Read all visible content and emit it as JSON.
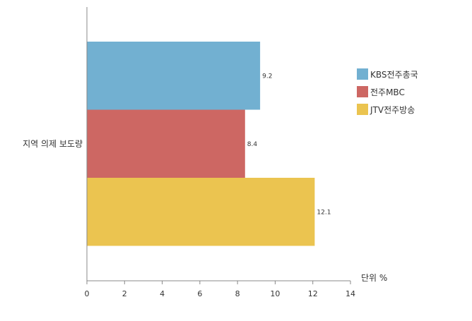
{
  "chart_data": {
    "type": "bar",
    "orientation": "horizontal",
    "categories": [
      "지역 의제 보도량"
    ],
    "series": [
      {
        "name": "KBS전주총국",
        "values": [
          9.2
        ],
        "color": "#72B0D1"
      },
      {
        "name": "전주MBC",
        "values": [
          8.4
        ],
        "color": "#CD6763"
      },
      {
        "name": "JTV전주방송",
        "values": [
          12.1
        ],
        "color": "#EBC450"
      }
    ],
    "x_unit_label": "단위 %",
    "xlim": [
      0,
      14
    ],
    "x_ticks": [
      "0",
      "2",
      "4",
      "6",
      "8",
      "10",
      "12",
      "14"
    ],
    "grid": false,
    "legend_position": "right",
    "data_labels": [
      "9.2",
      "8.4",
      "12.1"
    ]
  }
}
